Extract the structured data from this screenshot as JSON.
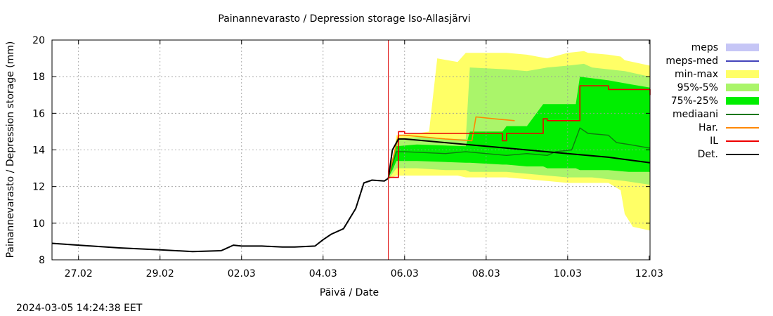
{
  "chart_data": {
    "type": "area",
    "title": "Painannevarasto / Depression storage   Iso-Allasjärvi",
    "xlabel": "Päivä / Date",
    "ylabel": "Painannevarasto / Depression storage (mm)",
    "timestamp": "2024-03-05 14:24:38 EET",
    "x_unit": "days since 2024-02-26 00:00",
    "xlim": [
      0.35,
      15.02
    ],
    "ylim": [
      8,
      20
    ],
    "y_ticks": [
      8,
      10,
      12,
      14,
      16,
      18,
      20
    ],
    "x_ticks": [
      {
        "x": 1,
        "label": "27.02"
      },
      {
        "x": 3,
        "label": "29.02"
      },
      {
        "x": 5,
        "label": "02.03"
      },
      {
        "x": 7,
        "label": "04.03"
      },
      {
        "x": 9,
        "label": "06.03"
      },
      {
        "x": 11,
        "label": "08.03"
      },
      {
        "x": 13,
        "label": "10.03"
      },
      {
        "x": 15,
        "label": "12.03"
      }
    ],
    "grid": true,
    "forecast_start": 8.6,
    "legend": [
      {
        "key": "meps",
        "label": "meps",
        "color": "#c6c6f6",
        "type": "box"
      },
      {
        "key": "meps_med",
        "label": "meps-med",
        "color": "#4444bb",
        "type": "line"
      },
      {
        "key": "minmax",
        "label": "min-max",
        "color": "#ffff66",
        "type": "box"
      },
      {
        "key": "p95_5",
        "label": "95%-5%",
        "color": "#aaf56a",
        "type": "box"
      },
      {
        "key": "p75_25",
        "label": "75%-25%",
        "color": "#00ee00",
        "type": "box"
      },
      {
        "key": "median",
        "label": "mediaani",
        "color": "#117711",
        "type": "line"
      },
      {
        "key": "har",
        "label": "Har.",
        "color": "#ff8800",
        "type": "line"
      },
      {
        "key": "il",
        "label": "IL",
        "color": "#ee0000",
        "type": "line"
      },
      {
        "key": "det",
        "label": "Det.",
        "color": "#000000",
        "type": "line"
      }
    ],
    "series": {
      "minmax": {
        "x": [
          8.6,
          8.7,
          8.8,
          9.3,
          9.6,
          9.8,
          10.3,
          10.5,
          11.5,
          12.0,
          12.5,
          13.0,
          13.4,
          13.5,
          14.0,
          14.3,
          14.4,
          14.6,
          15.02
        ],
        "upper": [
          12.6,
          13.3,
          14.8,
          14.9,
          15.0,
          19.0,
          18.8,
          19.3,
          19.3,
          19.2,
          19.0,
          19.3,
          19.4,
          19.3,
          19.2,
          19.1,
          18.9,
          18.8,
          18.6
        ],
        "lower": [
          12.4,
          12.5,
          12.6,
          12.6,
          12.6,
          12.6,
          12.6,
          12.5,
          12.5,
          12.4,
          12.3,
          12.2,
          12.2,
          12.2,
          12.2,
          11.8,
          10.5,
          9.8,
          9.6
        ]
      },
      "p95_5": {
        "x": [
          8.6,
          8.7,
          8.8,
          9.3,
          10.0,
          10.5,
          10.6,
          11.5,
          12.0,
          12.5,
          13.0,
          13.4,
          13.6,
          14.0,
          14.4,
          15.02
        ],
        "upper": [
          12.6,
          13.3,
          14.6,
          14.7,
          14.6,
          14.6,
          18.5,
          18.4,
          18.3,
          18.5,
          18.6,
          18.7,
          18.5,
          18.4,
          18.3,
          18.0
        ],
        "lower": [
          12.4,
          12.7,
          13.0,
          13.0,
          12.9,
          12.9,
          12.8,
          12.8,
          12.7,
          12.6,
          12.5,
          12.5,
          12.5,
          12.4,
          12.3,
          12.1
        ]
      },
      "p75_25": {
        "x": [
          8.6,
          8.7,
          8.8,
          9.3,
          10.5,
          10.6,
          11.4,
          11.5,
          12.0,
          12.4,
          12.5,
          13.2,
          13.3,
          14.0,
          14.5,
          15.02
        ],
        "upper": [
          12.6,
          13.3,
          14.2,
          14.3,
          14.2,
          15.0,
          15.0,
          15.3,
          15.3,
          16.5,
          16.5,
          16.5,
          18.0,
          17.8,
          17.6,
          17.4
        ],
        "lower": [
          12.5,
          12.9,
          13.4,
          13.4,
          13.3,
          13.3,
          13.2,
          13.2,
          13.1,
          13.1,
          13.0,
          13.0,
          12.9,
          12.9,
          12.8,
          12.8
        ]
      },
      "median": {
        "x": [
          8.6,
          8.8,
          9.0,
          10.0,
          10.5,
          11.0,
          11.5,
          12.0,
          12.5,
          12.7,
          13.1,
          13.3,
          13.5,
          14.0,
          14.2,
          14.5,
          15.02
        ],
        "y": [
          12.5,
          13.9,
          13.9,
          13.8,
          13.9,
          13.8,
          13.7,
          13.8,
          13.7,
          13.9,
          14.0,
          15.2,
          14.9,
          14.8,
          14.4,
          14.3,
          14.1
        ]
      },
      "har": {
        "x": [
          8.6,
          8.85,
          9.0,
          10.0,
          10.65,
          10.75,
          11.2,
          11.7
        ],
        "y": [
          12.5,
          14.8,
          14.8,
          14.6,
          14.5,
          15.8,
          15.7,
          15.6
        ]
      },
      "il": {
        "x": [
          8.6,
          8.85,
          9.0,
          11.4,
          11.5,
          12.0,
          12.4,
          12.5,
          13.1,
          13.3,
          14.0,
          14.4,
          15.02
        ],
        "y": [
          12.5,
          15.0,
          14.9,
          14.5,
          14.9,
          14.9,
          15.7,
          15.6,
          15.6,
          17.5,
          17.3,
          17.3,
          17.0
        ],
        "step": true
      },
      "det": {
        "x": [
          0.35,
          1.0,
          2.0,
          3.0,
          3.8,
          4.5,
          4.6,
          4.8,
          5.0,
          5.5,
          6.0,
          6.3,
          6.8,
          7.0,
          7.2,
          7.5,
          7.8,
          8.0,
          8.2,
          8.5,
          8.6,
          8.7,
          8.85,
          9.0,
          10.0,
          11.0,
          12.0,
          13.0,
          14.0,
          15.02
        ],
        "y": [
          8.9,
          8.8,
          8.65,
          8.55,
          8.45,
          8.5,
          8.6,
          8.8,
          8.75,
          8.75,
          8.7,
          8.7,
          8.75,
          9.1,
          9.4,
          9.7,
          10.8,
          12.2,
          12.35,
          12.3,
          12.45,
          14.0,
          14.6,
          14.6,
          14.4,
          14.2,
          14.0,
          13.8,
          13.6,
          13.3
        ]
      }
    }
  }
}
